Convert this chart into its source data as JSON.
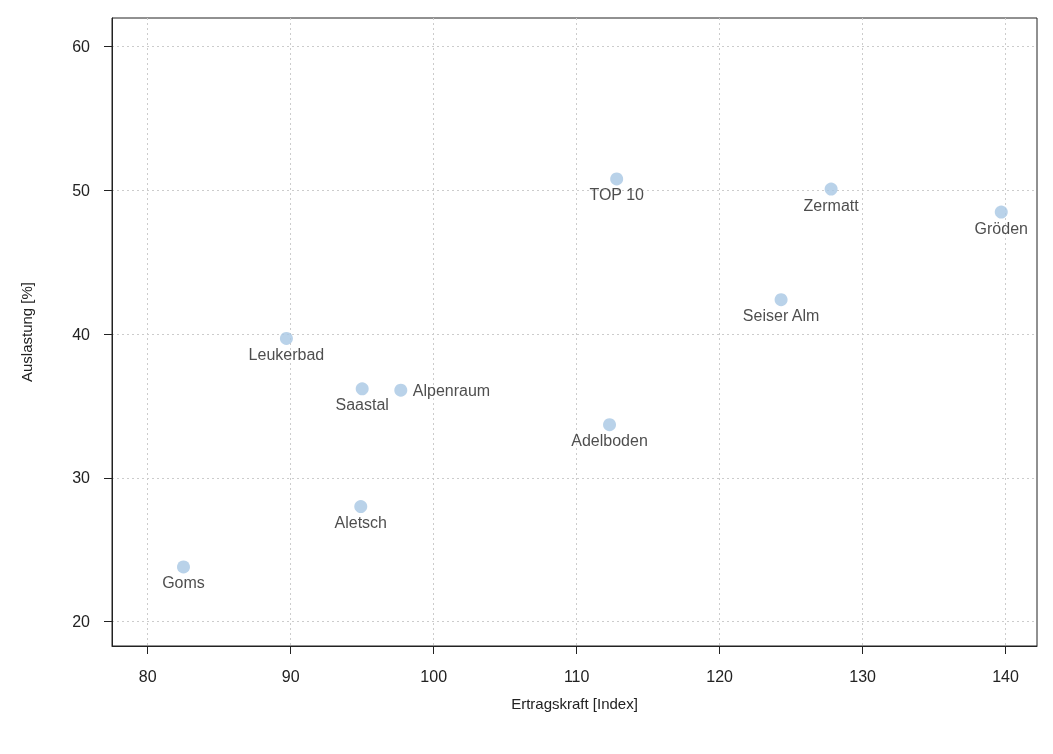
{
  "chart_data": {
    "type": "scatter",
    "xlabel": "Ertragskraft [Index]",
    "ylabel": "Auslastung [%]",
    "x": [
      112.8,
      127.8,
      139.7,
      124.3,
      89.7,
      95.0,
      97.7,
      112.3,
      94.9,
      82.5
    ],
    "values": [
      50.8,
      50.1,
      48.5,
      42.4,
      39.7,
      36.2,
      36.1,
      33.7,
      28.0,
      23.8
    ],
    "color": "#a7c7e3",
    "marker": "circle",
    "annotations": [
      {
        "text": "TOP 10",
        "x": 112.8,
        "y": 50.8
      },
      {
        "text": "Zermatt",
        "x": 127.8,
        "y": 50.1
      },
      {
        "text": "Gröden",
        "x": 139.7,
        "y": 48.5
      },
      {
        "text": "Seiser Alm",
        "x": 124.3,
        "y": 42.4
      },
      {
        "text": "Leukerbad",
        "x": 89.7,
        "y": 39.7
      },
      {
        "text": "Saastal",
        "x": 95.0,
        "y": 36.2
      },
      {
        "text": "Alpenraum",
        "x": 97.7,
        "y": 36.1
      },
      {
        "text": "Adelboden",
        "x": 112.3,
        "y": 33.7
      },
      {
        "text": "Aletsch",
        "x": 94.9,
        "y": 28.0
      },
      {
        "text": "Goms",
        "x": 82.5,
        "y": 23.8
      }
    ],
    "xlim": [
      77.5,
      142.2
    ],
    "xticks": [
      80,
      90,
      100,
      110,
      120,
      130,
      140
    ],
    "ylim": [
      18.3,
      62
    ],
    "yticks": [
      20,
      30,
      40,
      50,
      60
    ],
    "grid": true
  }
}
